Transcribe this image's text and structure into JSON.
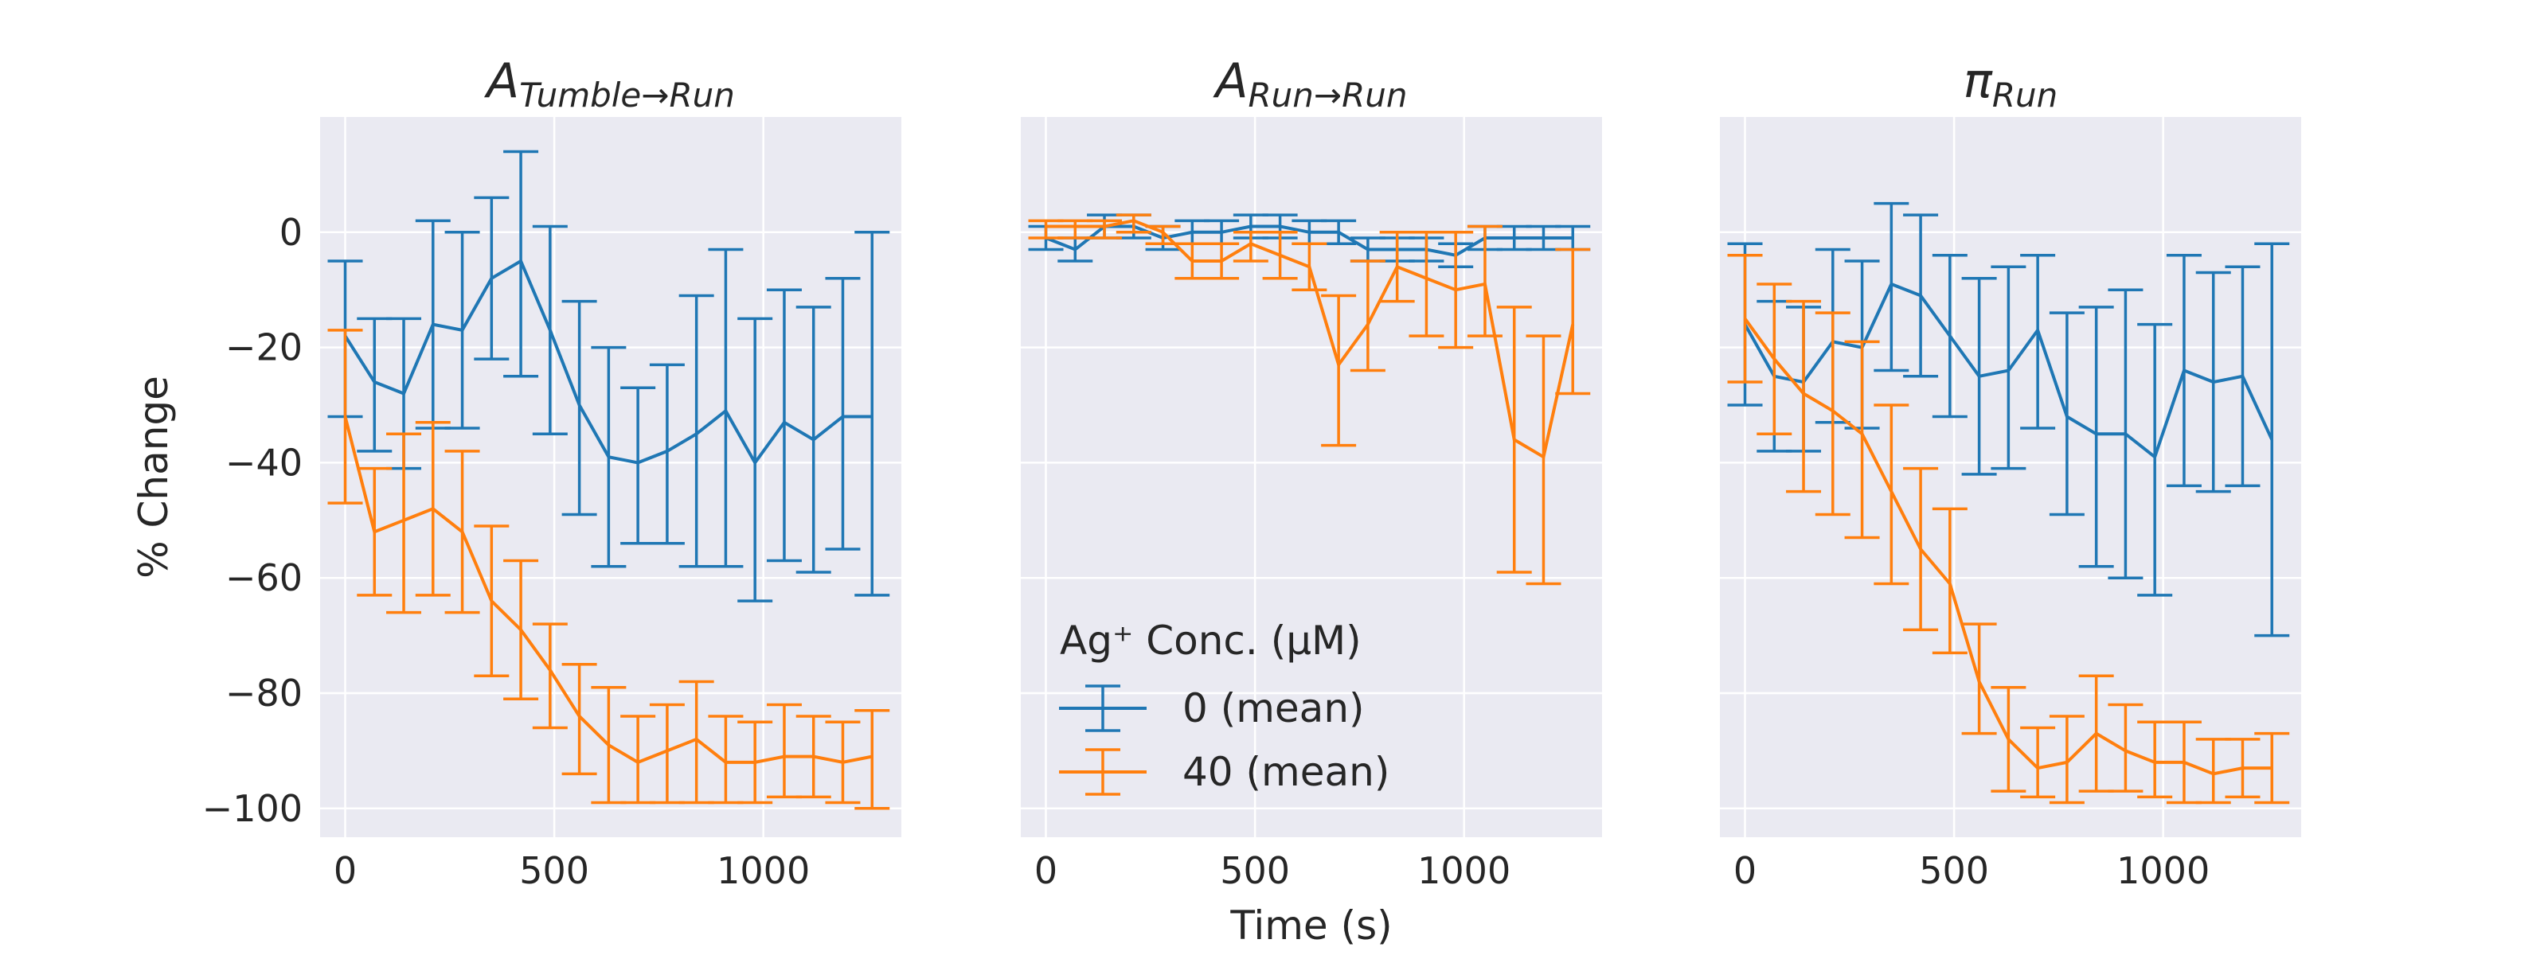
{
  "chart_data": {
    "type": "line",
    "xlabel": "Time (s)",
    "ylabel": "% Change",
    "xlim": [
      -60,
      1330
    ],
    "ylim": [
      -105,
      20
    ],
    "xticks": [
      0,
      500,
      1000
    ],
    "yticks": [
      0,
      -20,
      -40,
      -60,
      -80,
      -100
    ],
    "ytick_labels": [
      "0",
      "−20",
      "−40",
      "−60",
      "−80",
      "−100"
    ],
    "grid": true,
    "colors": {
      "0": "#1f77b4",
      "40": "#ff7f0e"
    },
    "legend": {
      "placement": "lower-left",
      "panel": 1,
      "title": "Ag⁺ Conc. (μM)",
      "entries": [
        "0 (mean)",
        "40 (mean)"
      ]
    },
    "x": [
      0,
      70,
      140,
      210,
      280,
      350,
      420,
      490,
      560,
      630,
      700,
      770,
      840,
      910,
      980,
      1050,
      1120,
      1190,
      1260
    ],
    "panels": [
      {
        "title_main": "A",
        "title_sub": "Tumble→Run",
        "series": [
          {
            "name": "0",
            "y": [
              -18,
              -26,
              -28,
              -16,
              -17,
              -8,
              -5,
              -17,
              -30,
              -39,
              -40,
              -38,
              -35,
              -31,
              -40,
              -33,
              -36,
              -32,
              -32
            ],
            "ylow": [
              -32,
              -38,
              -41,
              -34,
              -34,
              -22,
              -25,
              -35,
              -49,
              -58,
              -54,
              -54,
              -58,
              -58,
              -64,
              -57,
              -59,
              -55,
              -63
            ],
            "yhigh": [
              -5,
              -15,
              -15,
              2,
              0,
              6,
              14,
              1,
              -12,
              -20,
              -27,
              -23,
              -11,
              -3,
              -15,
              -10,
              -13,
              -8,
              0
            ]
          },
          {
            "name": "40",
            "y": [
              -32,
              -52,
              -50,
              -48,
              -52,
              -64,
              -69,
              -76,
              -84,
              -89,
              -92,
              -90,
              -88,
              -92,
              -92,
              -91,
              -91,
              -92,
              -91
            ],
            "ylow": [
              -47,
              -63,
              -66,
              -63,
              -66,
              -77,
              -81,
              -86,
              -94,
              -99,
              -99,
              -99,
              -99,
              -99,
              -99,
              -98,
              -98,
              -99,
              -100
            ],
            "yhigh": [
              -17,
              -41,
              -35,
              -33,
              -38,
              -51,
              -57,
              -68,
              -75,
              -79,
              -84,
              -82,
              -78,
              -84,
              -85,
              -82,
              -84,
              -85,
              -83
            ]
          }
        ]
      },
      {
        "title_main": "A",
        "title_sub": "Run→Run",
        "series": [
          {
            "name": "0",
            "y": [
              -1,
              -3,
              1,
              1,
              -1,
              0,
              0,
              1,
              1,
              0,
              0,
              -3,
              -3,
              -3,
              -4,
              -1,
              -1,
              -1,
              -1
            ],
            "ylow": [
              -3,
              -5,
              -1,
              -1,
              -3,
              -2,
              -2,
              -1,
              -1,
              -2,
              -2,
              -5,
              -5,
              -5,
              -6,
              -3,
              -3,
              -3,
              -3
            ],
            "yhigh": [
              1,
              -1,
              3,
              3,
              1,
              2,
              2,
              3,
              3,
              2,
              2,
              -1,
              -1,
              -1,
              -2,
              1,
              1,
              1,
              1
            ]
          },
          {
            "name": "40",
            "y": [
              1,
              1,
              1,
              2,
              0,
              -5,
              -5,
              -2,
              -4,
              -6,
              -23,
              -16,
              -6,
              -8,
              -10,
              -9,
              -36,
              -39,
              -16
            ],
            "ylow": [
              -1,
              -1,
              -1,
              0,
              -2,
              -8,
              -8,
              -5,
              -8,
              -10,
              -37,
              -24,
              -12,
              -18,
              -20,
              -18,
              -59,
              -61,
              -28
            ],
            "yhigh": [
              2,
              2,
              2,
              3,
              1,
              -2,
              -2,
              0,
              0,
              -2,
              -11,
              -5,
              0,
              0,
              0,
              1,
              -13,
              -18,
              -3
            ]
          }
        ]
      },
      {
        "title_main": "π",
        "title_sub": "Run",
        "series": [
          {
            "name": "0",
            "y": [
              -16,
              -25,
              -26,
              -19,
              -20,
              -9,
              -11,
              -18,
              -25,
              -24,
              -17,
              -32,
              -35,
              -35,
              -39,
              -24,
              -26,
              -25,
              -36
            ],
            "ylow": [
              -30,
              -38,
              -38,
              -33,
              -34,
              -24,
              -25,
              -32,
              -42,
              -41,
              -34,
              -49,
              -58,
              -60,
              -63,
              -44,
              -45,
              -44,
              -70
            ],
            "yhigh": [
              -2,
              -12,
              -13,
              -3,
              -5,
              5,
              3,
              -4,
              -8,
              -6,
              -4,
              -14,
              -13,
              -10,
              -16,
              -4,
              -7,
              -6,
              -2
            ]
          },
          {
            "name": "40",
            "y": [
              -15,
              -22,
              -28,
              -31,
              -35,
              -45,
              -55,
              -61,
              -78,
              -88,
              -93,
              -92,
              -87,
              -90,
              -92,
              -92,
              -94,
              -93,
              -93
            ],
            "ylow": [
              -26,
              -35,
              -45,
              -49,
              -53,
              -61,
              -69,
              -73,
              -87,
              -97,
              -98,
              -99,
              -97,
              -97,
              -98,
              -99,
              -99,
              -98,
              -99
            ],
            "yhigh": [
              -4,
              -9,
              -12,
              -14,
              -19,
              -30,
              -41,
              -48,
              -68,
              -79,
              -86,
              -84,
              -77,
              -82,
              -85,
              -85,
              -88,
              -88,
              -87
            ]
          }
        ]
      }
    ]
  }
}
